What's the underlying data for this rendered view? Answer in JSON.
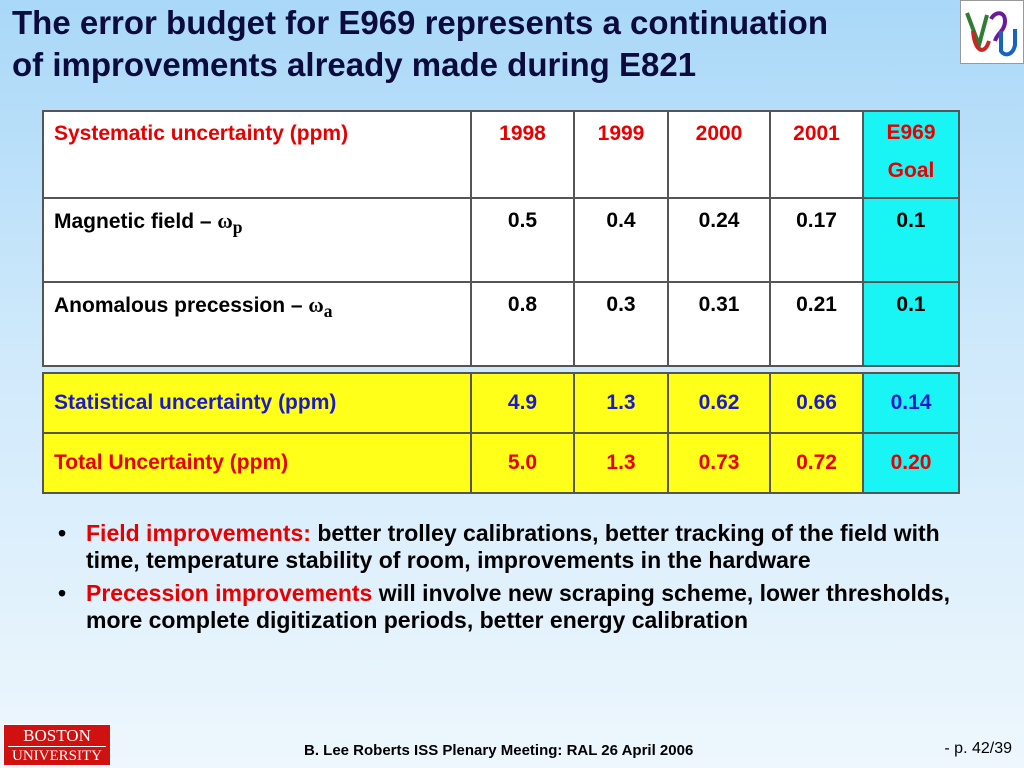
{
  "title": {
    "line1": "The error budget for E969 represents a continuation",
    "line2": "of improvements already made during E821"
  },
  "systematic_table": {
    "header": {
      "label": "Systematic uncertainty (ppm)",
      "years": [
        "1998",
        "1999",
        "2000",
        "2001"
      ],
      "goal_line1": "E969",
      "goal_line2": "Goal"
    },
    "rows": [
      {
        "label": "Magnetic field – ",
        "symbol": "ω",
        "subscript": "p",
        "values": [
          "0.5",
          "0.4",
          "0.24",
          "0.17"
        ],
        "goal": "0.1"
      },
      {
        "label": "Anomalous precession – ",
        "symbol": "ω",
        "subscript": "a",
        "values": [
          "0.8",
          "0.3",
          "0.31",
          "0.21"
        ],
        "goal": "0.1"
      }
    ]
  },
  "summary_table": {
    "rows": [
      {
        "label": "Statistical uncertainty (ppm)",
        "values": [
          "4.9",
          "1.3",
          "0.62",
          "0.66"
        ],
        "goal": "0.14"
      },
      {
        "label": "Total Uncertainty (ppm)",
        "values": [
          "5.0",
          "1.3",
          "0.73",
          "0.72"
        ],
        "goal": "0.20"
      }
    ]
  },
  "bullets": [
    {
      "highlight": "Field improvements:",
      "text": " better trolley calibrations,  better tracking of the field with time, temperature stability of room, improvements in the hardware"
    },
    {
      "highlight": "Precession improvements",
      "text": " will involve new scraping scheme, lower thresholds, more complete digitization periods, better energy calibration"
    }
  ],
  "logo": {
    "line1": "BOSTON",
    "line2": "UNIVERSITY"
  },
  "footer": "B. Lee Roberts  ISS Plenary Meeting: RAL 26 April 2006",
  "page": "- p. 42/39",
  "colors": {
    "red": "#e60000",
    "blue": "#1a1acc",
    "yellow": "#ffff19",
    "cyan": "#19f5f5"
  }
}
